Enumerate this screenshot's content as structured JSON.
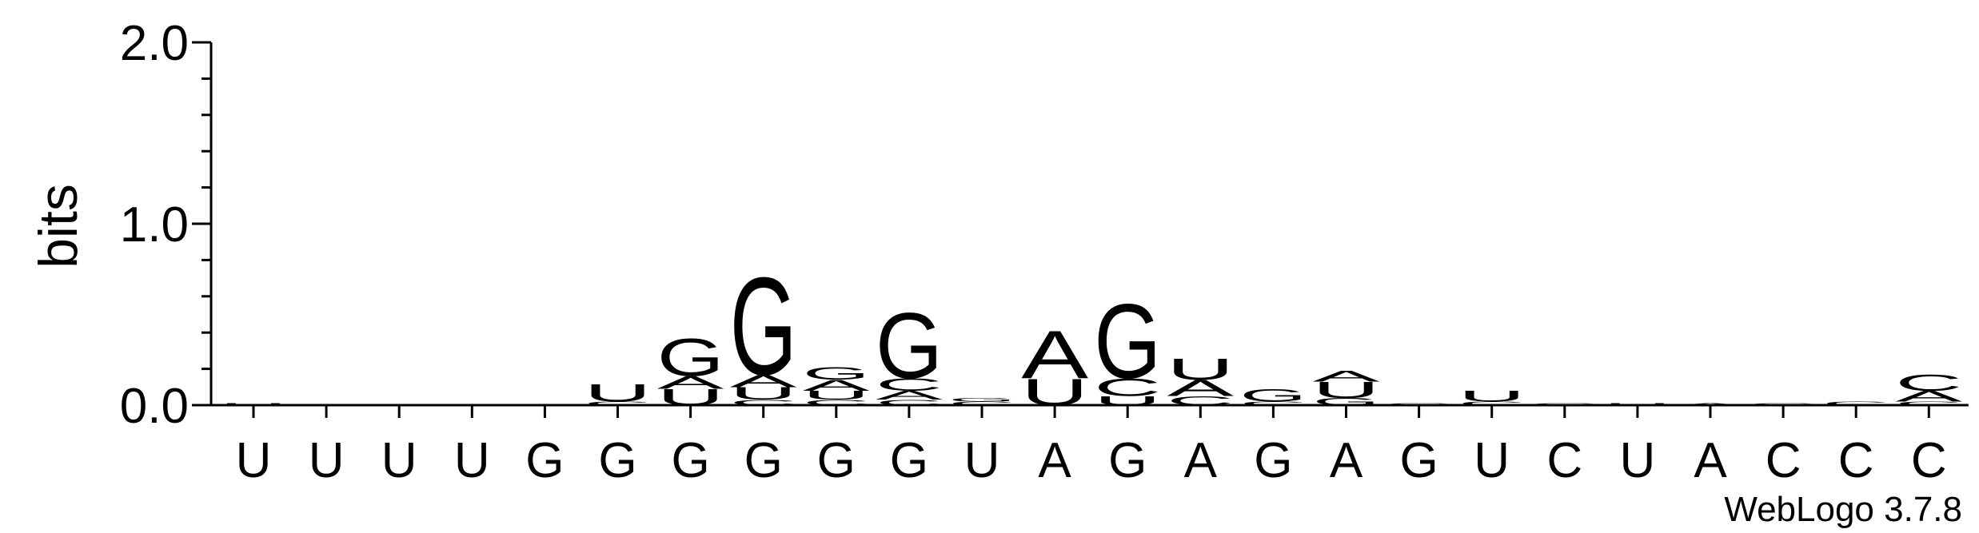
{
  "chart_data": {
    "type": "logo",
    "ylabel": "bits",
    "footer": "WebLogo 3.7.8",
    "categories": [
      "U",
      "U",
      "U",
      "U",
      "G",
      "G",
      "G",
      "G",
      "G",
      "G",
      "U",
      "A",
      "G",
      "A",
      "G",
      "A",
      "G",
      "U",
      "C",
      "U",
      "A",
      "C",
      "C",
      "C"
    ],
    "ylim": [
      0,
      2
    ],
    "yticks": [
      {
        "value": 0,
        "label": "0.0"
      },
      {
        "value": 1,
        "label": "1.0"
      },
      {
        "value": 2,
        "label": "2.0"
      }
    ],
    "yminorticks": [
      0.2,
      0.4,
      0.6,
      0.8,
      1.2,
      1.4,
      1.6,
      1.8
    ],
    "colors": {
      "A": "#ff8c00",
      "U": "#ff8c00",
      "G": "#0000ff",
      "C": "#0000ff"
    },
    "stacks": [
      [
        {
          "letter": "U",
          "height": 0.01
        }
      ],
      [],
      [],
      [],
      [],
      [
        {
          "letter": "C",
          "height": 0.02
        },
        {
          "letter": "U",
          "height": 0.1
        }
      ],
      [
        {
          "letter": "U",
          "height": 0.09
        },
        {
          "letter": "A",
          "height": 0.07
        },
        {
          "letter": "G",
          "height": 0.21
        }
      ],
      [
        {
          "letter": "C",
          "height": 0.03
        },
        {
          "letter": "U",
          "height": 0.07
        },
        {
          "letter": "A",
          "height": 0.07
        },
        {
          "letter": "G",
          "height": 0.55
        }
      ],
      [
        {
          "letter": "C",
          "height": 0.03
        },
        {
          "letter": "U",
          "height": 0.05
        },
        {
          "letter": "A",
          "height": 0.06
        },
        {
          "letter": "G",
          "height": 0.07
        }
      ],
      [
        {
          "letter": "C",
          "height": 0.03
        },
        {
          "letter": "A",
          "height": 0.05
        },
        {
          "letter": "C",
          "height": 0.07
        },
        {
          "letter": "G",
          "height": 0.37
        }
      ],
      [
        {
          "letter": "C",
          "height": 0.02
        },
        {
          "letter": "G",
          "height": 0.02
        }
      ],
      [
        {
          "letter": "U",
          "height": 0.15
        },
        {
          "letter": "A",
          "height": 0.27
        }
      ],
      [
        {
          "letter": "U",
          "height": 0.05
        },
        {
          "letter": "C",
          "height": 0.1
        },
        {
          "letter": "G",
          "height": 0.42
        }
      ],
      [
        {
          "letter": "C",
          "height": 0.05
        },
        {
          "letter": "A",
          "height": 0.09
        },
        {
          "letter": "U",
          "height": 0.12
        }
      ],
      [
        {
          "letter": "C",
          "height": 0.02
        },
        {
          "letter": "G",
          "height": 0.07
        }
      ],
      [
        {
          "letter": "G",
          "height": 0.04
        },
        {
          "letter": "U",
          "height": 0.09
        },
        {
          "letter": "A",
          "height": 0.06
        }
      ],
      [
        {
          "letter": "C",
          "height": 0.01
        }
      ],
      [
        {
          "letter": "C",
          "height": 0.02
        },
        {
          "letter": "U",
          "height": 0.06
        }
      ],
      [
        {
          "letter": "C",
          "height": 0.01
        }
      ],
      [
        {
          "letter": "U",
          "height": 0.01
        }
      ],
      [
        {
          "letter": "A",
          "height": 0.01
        }
      ],
      [
        {
          "letter": "C",
          "height": 0.01
        }
      ],
      [
        {
          "letter": "C",
          "height": 0.02
        }
      ],
      [
        {
          "letter": "C",
          "height": 0.02
        },
        {
          "letter": "A",
          "height": 0.06
        },
        {
          "letter": "C",
          "height": 0.09
        }
      ]
    ]
  }
}
